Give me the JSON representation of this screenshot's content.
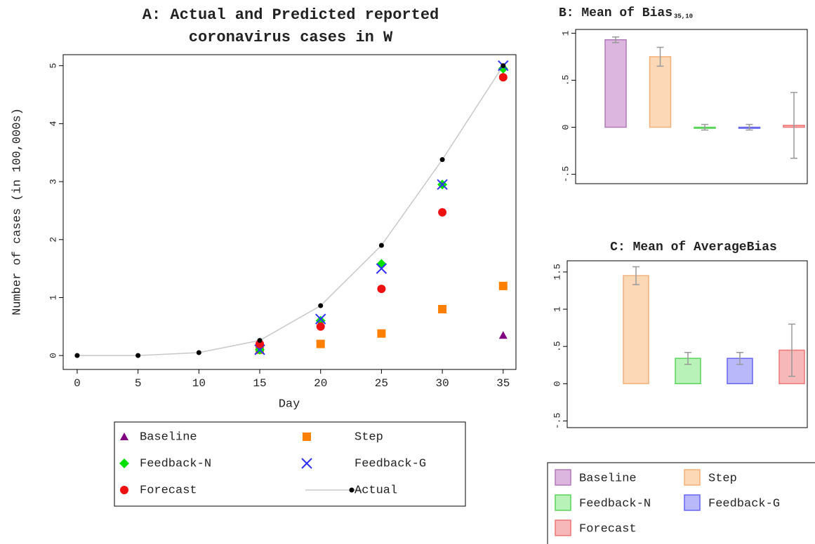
{
  "chart_data": [
    {
      "type": "scatter",
      "title": [
        "A: Actual and Predicted reported",
        "coronavirus cases in W"
      ],
      "x_label": "Day",
      "y_label": "Number of cases (in 100,000s)",
      "xlim": [
        -1.15,
        36.05
      ],
      "ylim": [
        -0.24,
        5.19
      ],
      "xticks": [
        0,
        5,
        10,
        15,
        20,
        25,
        30,
        35
      ],
      "yticks": [
        0,
        1,
        2,
        3,
        4,
        5
      ],
      "x": [
        0,
        5,
        10,
        15,
        20,
        25,
        30,
        35
      ],
      "series": [
        {
          "name": "Baseline",
          "color": "#800080",
          "marker": "triangle",
          "values": [
            null,
            null,
            null,
            null,
            null,
            null,
            null,
            0.35
          ]
        },
        {
          "name": "Step",
          "color": "#ff8000",
          "marker": "square",
          "values": [
            null,
            null,
            null,
            0.1,
            0.2,
            0.38,
            0.8,
            1.2
          ]
        },
        {
          "name": "Feedback-N",
          "color": "#00e000",
          "marker": "diamond",
          "values": [
            null,
            null,
            null,
            0.1,
            0.6,
            1.58,
            2.95,
            4.95
          ]
        },
        {
          "name": "Feedback-G",
          "color": "#3030ff",
          "marker": "cross",
          "values": [
            null,
            null,
            null,
            0.1,
            0.63,
            1.5,
            2.95,
            5.0
          ]
        },
        {
          "name": "Forecast",
          "color": "#ee1111",
          "marker": "circle",
          "values": [
            null,
            null,
            null,
            0.2,
            0.5,
            1.15,
            2.47,
            4.8
          ]
        },
        {
          "name": "Actual",
          "color": "#000000",
          "line_color": "#c8c8c8",
          "marker": "line",
          "values": [
            0,
            0,
            0.05,
            0.26,
            0.86,
            1.9,
            3.38,
            5.0
          ]
        }
      ]
    },
    {
      "type": "bar",
      "title": "B: Mean of Bias",
      "title_subscript": "35,10",
      "ylim": [
        -0.6,
        1.04
      ],
      "yticks": [
        {
          "value": -0.5,
          "label": "-.5"
        },
        0,
        {
          "value": 0.5,
          "label": ".5"
        },
        1
      ],
      "values": [
        0.93,
        0.75,
        0,
        0,
        0.02
      ],
      "errors": [
        0.03,
        0.1,
        0.03,
        0.03,
        0.35
      ]
    },
    {
      "type": "bar",
      "title": "C: Mean of AverageBias",
      "ylim": [
        -0.59,
        1.65
      ],
      "yticks": [
        {
          "value": -0.5,
          "label": "-.5"
        },
        0,
        {
          "value": 0.5,
          "label": ".5"
        },
        1,
        1.5
      ],
      "values": [
        null,
        1.45,
        0.34,
        0.34,
        0.45
      ],
      "errors": [
        null,
        0.12,
        0.08,
        0.08,
        0.35
      ]
    }
  ],
  "bar_legend": {
    "categories": [
      "Baseline",
      "Step",
      "Feedback-N",
      "Feedback-G",
      "Forecast"
    ],
    "colors": [
      "#dcb6de",
      "#fdd8b6",
      "#b8f2b8",
      "#b8b8fa",
      "#f6b8b8"
    ],
    "border_colors": [
      "#b07ab8",
      "#f4b07a",
      "#5ad35a",
      "#6666ee",
      "#ee7777"
    ]
  }
}
